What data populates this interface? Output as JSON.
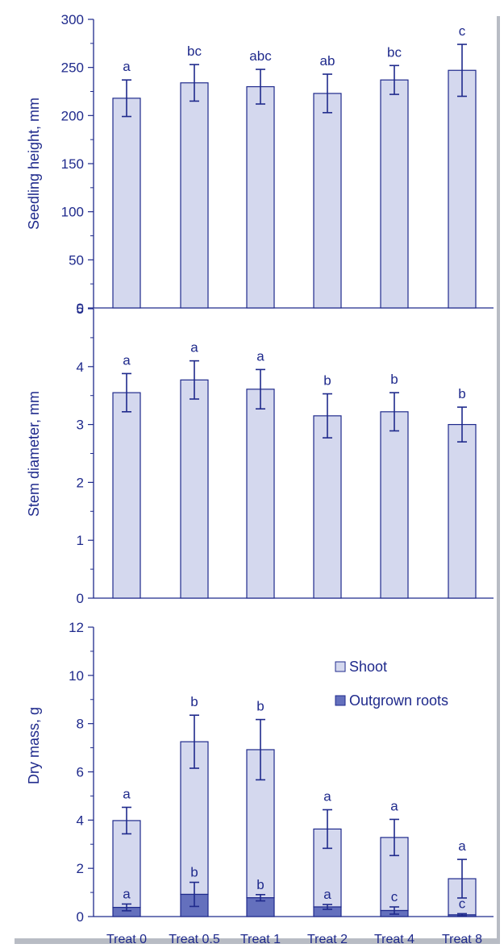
{
  "categories": [
    "Treat 0",
    "Treat 0.5",
    "Treat 1",
    "Treat 2",
    "Treat 4",
    "Treat 8"
  ],
  "colors": {
    "axis": "#1f2a8c",
    "shoot_fill": "#d4d8ee",
    "roots_fill": "#6470bd",
    "bar_stroke": "#1f2a8c",
    "frame_shadow": "#9aa0a8"
  },
  "chart_data": [
    {
      "type": "bar",
      "ylabel": "Seedling height, mm",
      "ylim": [
        0,
        300
      ],
      "yticks": [
        0,
        50,
        100,
        150,
        200,
        250,
        300
      ],
      "categories": [
        "Treat 0",
        "Treat 0.5",
        "Treat 1",
        "Treat 2",
        "Treat 4",
        "Treat 8"
      ],
      "values": [
        218,
        234,
        230,
        223,
        237,
        247
      ],
      "errors": [
        19,
        19,
        18,
        20,
        15,
        27
      ],
      "letters": [
        "a",
        "bc",
        "abc",
        "ab",
        "bc",
        "c"
      ]
    },
    {
      "type": "bar",
      "ylabel": "Stem diameter, mm",
      "ylim": [
        0,
        5
      ],
      "yticks": [
        0,
        1,
        2,
        3,
        4,
        5
      ],
      "categories": [
        "Treat 0",
        "Treat 0.5",
        "Treat 1",
        "Treat 2",
        "Treat 4",
        "Treat 8"
      ],
      "values": [
        3.55,
        3.77,
        3.61,
        3.15,
        3.22,
        3.0
      ],
      "errors": [
        0.33,
        0.33,
        0.34,
        0.38,
        0.33,
        0.3
      ],
      "letters": [
        "a",
        "a",
        "a",
        "b",
        "b",
        "b"
      ]
    },
    {
      "type": "bar",
      "stacked": true,
      "ylabel": "Dry mass, g",
      "ylim": [
        0,
        12
      ],
      "yticks": [
        0,
        2,
        4,
        6,
        8,
        10,
        12
      ],
      "legend_position": "top-right",
      "categories": [
        "Treat 0",
        "Treat 0.5",
        "Treat 1",
        "Treat 2",
        "Treat 4",
        "Treat 8"
      ],
      "series": [
        {
          "name": "Outgrown roots",
          "values": [
            0.38,
            0.92,
            0.78,
            0.4,
            0.25,
            0.07
          ],
          "errors": [
            0.14,
            0.5,
            0.13,
            0.1,
            0.15,
            0.05
          ],
          "letters": [
            "a",
            "b",
            "b",
            "a",
            "c",
            "c"
          ]
        },
        {
          "name": "Shoot",
          "totals": [
            3.98,
            7.25,
            6.92,
            3.63,
            3.28,
            1.57
          ],
          "errors": [
            0.55,
            1.1,
            1.25,
            0.8,
            0.75,
            0.8
          ],
          "letters": [
            "a",
            "b",
            "b",
            "a",
            "a",
            "a"
          ]
        }
      ]
    }
  ]
}
